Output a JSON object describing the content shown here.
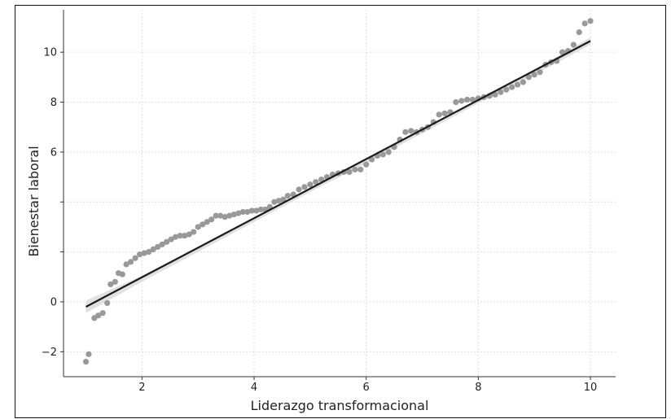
{
  "chart_data": {
    "type": "scatter",
    "xlabel": "Liderazgo transformacional",
    "ylabel": "Bienestar laboral",
    "xlim": [
      0.6,
      10.45
    ],
    "ylim": [
      -3.0,
      11.7
    ],
    "xticks": [
      2,
      4,
      6,
      8,
      10
    ],
    "yticks": [
      -2,
      0,
      2,
      4,
      6,
      8,
      10
    ],
    "ytick_labels": [
      "−2",
      "0",
      "",
      "",
      "6",
      "8",
      "10"
    ],
    "grid": true,
    "point_color": "#999999",
    "line_color": "#1a1a1a",
    "band_color": "#d9d9d9",
    "fit_line": {
      "x": [
        1.0,
        10.0
      ],
      "y": [
        -0.2,
        10.45
      ]
    },
    "ci_band": {
      "x": [
        1.0,
        2.0,
        3.0,
        4.0,
        5.0,
        6.0,
        7.0,
        8.0,
        9.0,
        10.0
      ],
      "lower": [
        -0.45,
        0.8,
        2.0,
        3.2,
        4.4,
        5.55,
        6.75,
        7.95,
        9.1,
        10.3
      ],
      "upper": [
        0.05,
        1.05,
        2.2,
        3.35,
        4.55,
        5.7,
        6.9,
        8.1,
        9.3,
        10.6
      ]
    },
    "points": {
      "x": [
        1.0,
        1.05,
        1.15,
        1.22,
        1.3,
        1.38,
        1.44,
        1.52,
        1.58,
        1.65,
        1.72,
        1.8,
        1.88,
        1.96,
        2.04,
        2.12,
        2.2,
        2.28,
        2.36,
        2.44,
        2.52,
        2.6,
        2.68,
        2.76,
        2.84,
        2.92,
        3.0,
        3.08,
        3.16,
        3.24,
        3.32,
        3.4,
        3.48,
        3.56,
        3.64,
        3.72,
        3.8,
        3.88,
        3.96,
        4.04,
        4.12,
        4.2,
        4.28,
        4.36,
        4.44,
        4.52,
        4.6,
        4.7,
        4.8,
        4.9,
        5.0,
        5.1,
        5.2,
        5.3,
        5.4,
        5.5,
        5.6,
        5.7,
        5.8,
        5.9,
        6.0,
        6.1,
        6.2,
        6.3,
        6.4,
        6.5,
        6.6,
        6.7,
        6.8,
        6.9,
        7.0,
        7.1,
        7.2,
        7.3,
        7.4,
        7.5,
        7.6,
        7.7,
        7.8,
        7.9,
        8.0,
        8.1,
        8.2,
        8.3,
        8.4,
        8.5,
        8.6,
        8.7,
        8.8,
        8.9,
        9.0,
        9.1,
        9.2,
        9.3,
        9.4,
        9.5,
        9.6,
        9.7,
        9.8,
        9.9,
        10.0
      ],
      "y": [
        -2.4,
        -2.1,
        -0.65,
        -0.55,
        -0.45,
        -0.05,
        0.7,
        0.8,
        1.15,
        1.1,
        1.5,
        1.6,
        1.75,
        1.9,
        1.95,
        2.0,
        2.1,
        2.2,
        2.3,
        2.4,
        2.5,
        2.6,
        2.65,
        2.65,
        2.7,
        2.8,
        3.0,
        3.1,
        3.2,
        3.3,
        3.45,
        3.45,
        3.4,
        3.45,
        3.5,
        3.55,
        3.6,
        3.6,
        3.65,
        3.65,
        3.7,
        3.7,
        3.8,
        4.0,
        4.05,
        4.1,
        4.25,
        4.3,
        4.5,
        4.6,
        4.7,
        4.8,
        4.9,
        5.0,
        5.1,
        5.15,
        5.2,
        5.2,
        5.3,
        5.3,
        5.5,
        5.7,
        5.85,
        5.9,
        6.0,
        6.2,
        6.5,
        6.8,
        6.85,
        6.8,
        6.9,
        7.0,
        7.2,
        7.5,
        7.55,
        7.6,
        8.0,
        8.05,
        8.1,
        8.1,
        8.15,
        8.2,
        8.25,
        8.3,
        8.4,
        8.5,
        8.6,
        8.7,
        8.8,
        9.0,
        9.1,
        9.2,
        9.5,
        9.6,
        9.65,
        10.0,
        10.05,
        10.3,
        10.8,
        11.15,
        11.25
      ]
    }
  }
}
